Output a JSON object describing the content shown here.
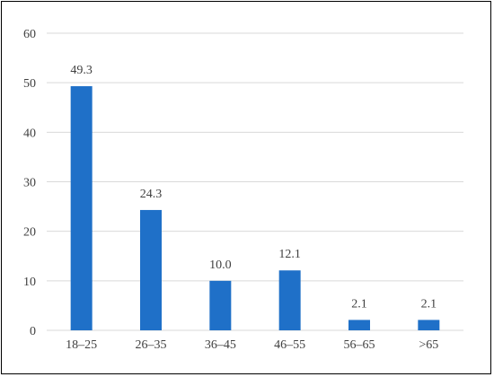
{
  "chart_data": {
    "type": "bar",
    "categories": [
      "18–25",
      "26–35",
      "36–45",
      "46–55",
      "56–65",
      ">65"
    ],
    "values": [
      49.3,
      24.3,
      10.0,
      12.1,
      2.1,
      2.1
    ],
    "data_labels": [
      "49.3",
      "24.3",
      "10.0",
      "12.1",
      "2.1",
      "2.1"
    ],
    "ylim": [
      0,
      60
    ],
    "yticks": [
      "0",
      "10",
      "20",
      "30",
      "40",
      "50",
      "60"
    ],
    "title": "",
    "xlabel": "",
    "ylabel": "",
    "grid": true,
    "legend": "none",
    "bar_color": "#1f70c8",
    "grid_color": "#d9d9d9"
  }
}
